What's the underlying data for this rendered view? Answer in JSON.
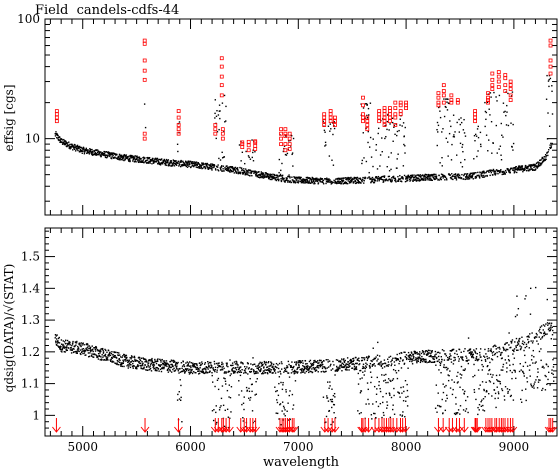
{
  "chart_data": [
    {
      "type": "scatter",
      "title": "Field  candels-cdfs-44",
      "ylabel": "effsig [cgs]",
      "xlim": [
        4650,
        9400
      ],
      "ylim": [
        2.3,
        100
      ],
      "log_y": true,
      "ytick_labels": [
        {
          "value": 10,
          "label": "10"
        },
        {
          "value": 100,
          "label": "100"
        }
      ],
      "colors": {
        "data": "#000000",
        "outliers": "#ff0000"
      },
      "baseline": {
        "x": [
          4750,
          4800,
          4900,
          5000,
          5200,
          5400,
          5600,
          5800,
          6000,
          6200,
          6400,
          6600,
          6800,
          7000,
          7200,
          7400,
          7600,
          7800,
          8000,
          8200,
          8400,
          8600,
          8700,
          8800,
          9000,
          9200,
          9300,
          9350
        ],
        "y": [
          10.8,
          9.5,
          8.6,
          8.0,
          7.4,
          6.9,
          6.6,
          6.3,
          6.1,
          5.8,
          5.5,
          5.1,
          4.7,
          4.5,
          4.45,
          4.45,
          4.5,
          4.6,
          4.65,
          4.75,
          4.8,
          4.85,
          5.0,
          5.2,
          5.5,
          5.8,
          7.0,
          9.0
        ]
      },
      "emission_bands": [
        {
          "x0": 5570,
          "x1": 5585,
          "ymax": 25
        },
        {
          "x0": 5880,
          "x1": 5900,
          "ymax": 15
        },
        {
          "x0": 6220,
          "x1": 6330,
          "ymax": 25
        },
        {
          "x0": 6450,
          "x1": 6600,
          "ymax": 10
        },
        {
          "x0": 6820,
          "x1": 6960,
          "ymax": 11
        },
        {
          "x0": 7230,
          "x1": 7340,
          "ymax": 14
        },
        {
          "x0": 7580,
          "x1": 7700,
          "ymax": 20
        },
        {
          "x0": 7720,
          "x1": 8000,
          "ymax": 16
        },
        {
          "x0": 8280,
          "x1": 8400,
          "ymax": 22
        },
        {
          "x0": 8400,
          "x1": 8560,
          "ymax": 16
        },
        {
          "x0": 8620,
          "x1": 8700,
          "ymax": 13
        },
        {
          "x0": 8730,
          "x1": 9000,
          "ymax": 25
        },
        {
          "x0": 9300,
          "x1": 9380,
          "ymax": 35
        }
      ],
      "outliers": [
        {
          "x": 4760,
          "y": [
            14,
            15,
            16,
            17
          ]
        },
        {
          "x": 5575,
          "y": [
            10,
            11,
            31,
            37,
            45,
            62,
            66
          ]
        },
        {
          "x": 5890,
          "y": [
            11,
            12,
            13,
            15,
            17
          ]
        },
        {
          "x": 6230,
          "y": [
            11,
            12,
            13
          ]
        },
        {
          "x": 6290,
          "y": [
            23,
            28,
            33,
            40,
            47
          ]
        },
        {
          "x": 6300,
          "y": [
            10,
            11,
            12
          ]
        },
        {
          "x": 6480,
          "y": [
            8.5,
            9,
            9.3
          ]
        },
        {
          "x": 6540,
          "y": [
            8,
            8.8,
            9.4
          ]
        },
        {
          "x": 6600,
          "y": [
            8.2,
            8.7,
            9.3,
            9.5
          ]
        },
        {
          "x": 6840,
          "y": [
            9,
            10,
            11,
            12
          ]
        },
        {
          "x": 6880,
          "y": [
            8,
            9,
            10.5,
            11,
            12
          ]
        },
        {
          "x": 6920,
          "y": [
            8.2,
            9,
            10,
            11
          ]
        },
        {
          "x": 7240,
          "y": [
            13,
            14,
            15,
            16
          ]
        },
        {
          "x": 7300,
          "y": [
            14,
            15,
            16,
            17
          ]
        },
        {
          "x": 7340,
          "y": [
            13,
            14,
            15
          ]
        },
        {
          "x": 7600,
          "y": [
            14,
            15,
            16,
            19,
            22
          ]
        },
        {
          "x": 7640,
          "y": [
            12,
            13,
            14,
            15
          ]
        },
        {
          "x": 7750,
          "y": [
            14,
            15,
            16,
            17
          ]
        },
        {
          "x": 7800,
          "y": [
            13,
            14,
            15,
            16,
            17,
            18
          ]
        },
        {
          "x": 7850,
          "y": [
            14,
            15,
            16,
            17,
            18
          ]
        },
        {
          "x": 7900,
          "y": [
            13,
            15,
            16,
            18,
            20
          ]
        },
        {
          "x": 7950,
          "y": [
            16,
            17,
            19,
            20
          ]
        },
        {
          "x": 8000,
          "y": [
            18,
            19,
            20
          ]
        },
        {
          "x": 8300,
          "y": [
            19,
            20,
            22,
            24
          ]
        },
        {
          "x": 8350,
          "y": [
            20,
            23,
            25,
            28
          ]
        },
        {
          "x": 8420,
          "y": [
            20,
            21,
            23
          ]
        },
        {
          "x": 8480,
          "y": [
            20,
            21
          ]
        },
        {
          "x": 8640,
          "y": [
            14,
            15,
            16,
            17
          ]
        },
        {
          "x": 8760,
          "y": [
            20,
            21,
            22,
            24
          ]
        },
        {
          "x": 8800,
          "y": [
            26,
            28,
            31,
            35
          ]
        },
        {
          "x": 8860,
          "y": [
            27,
            30,
            33,
            36
          ]
        },
        {
          "x": 8920,
          "y": [
            25,
            28,
            32,
            34
          ]
        },
        {
          "x": 8970,
          "y": [
            21,
            23,
            26,
            28,
            30
          ]
        },
        {
          "x": 9340,
          "y": [
            35,
            40,
            45,
            60,
            66
          ]
        }
      ]
    },
    {
      "type": "scatter",
      "ylabel": "qdsig(DATA)/√(STAT)",
      "xlabel": "wavelength",
      "xlim": [
        4650,
        9400
      ],
      "ylim": [
        0.935,
        1.59
      ],
      "xtick_labels": [
        {
          "value": 5000,
          "label": "5000"
        },
        {
          "value": 6000,
          "label": "6000"
        },
        {
          "value": 7000,
          "label": "7000"
        },
        {
          "value": 8000,
          "label": "8000"
        },
        {
          "value": 9000,
          "label": "9000"
        }
      ],
      "ytick_labels": [
        {
          "value": 1.0,
          "label": "1"
        },
        {
          "value": 1.1,
          "label": "1.1"
        },
        {
          "value": 1.2,
          "label": "1.2"
        },
        {
          "value": 1.3,
          "label": "1.3"
        },
        {
          "value": 1.4,
          "label": "1.4"
        },
        {
          "value": 1.5,
          "label": "1.5"
        }
      ],
      "colors": {
        "data": "#000000",
        "arrows": "#ff0000"
      },
      "baseline": {
        "x": [
          4750,
          4800,
          5000,
          5200,
          5400,
          5600,
          5800,
          6000,
          6400,
          6800,
          7200,
          7600,
          8000,
          8400,
          8700,
          8800,
          9000,
          9100,
          9200,
          9300,
          9370
        ],
        "y": [
          1.24,
          1.22,
          1.21,
          1.19,
          1.17,
          1.16,
          1.155,
          1.15,
          1.15,
          1.15,
          1.155,
          1.165,
          1.18,
          1.19,
          1.19,
          1.2,
          1.22,
          1.23,
          1.25,
          1.27,
          1.29
        ]
      },
      "scatter_bands": [
        {
          "x0": 5880,
          "x1": 5920
        },
        {
          "x0": 6200,
          "x1": 6380
        },
        {
          "x0": 6440,
          "x1": 6620
        },
        {
          "x0": 6780,
          "x1": 6980
        },
        {
          "x0": 7230,
          "x1": 7360
        },
        {
          "x0": 7550,
          "x1": 8020
        },
        {
          "x0": 8270,
          "x1": 8580
        },
        {
          "x0": 8620,
          "x1": 9020
        },
        {
          "x0": 9050,
          "x1": 9380
        }
      ],
      "arrow_lines": [
        4756,
        5578,
        5888,
        6230,
        6258,
        6290,
        6305,
        6330,
        6360,
        6466,
        6498,
        6520,
        6554,
        6578,
        6604,
        6830,
        6850,
        6866,
        6882,
        6900,
        6918,
        6944,
        6960,
        7246,
        7276,
        7314,
        7340,
        7588,
        7600,
        7620,
        7652,
        7712,
        7748,
        7776,
        7796,
        7818,
        7840,
        7858,
        7880,
        7914,
        7948,
        7968,
        7994,
        8300,
        8344,
        8400,
        8430,
        8468,
        8495,
        8540,
        8640,
        8648,
        8660,
        8740,
        8760,
        8778,
        8796,
        8824,
        8840,
        8864,
        8884,
        8900,
        8918,
        8944,
        8968,
        8990,
        9326,
        9342,
        9360
      ]
    }
  ]
}
